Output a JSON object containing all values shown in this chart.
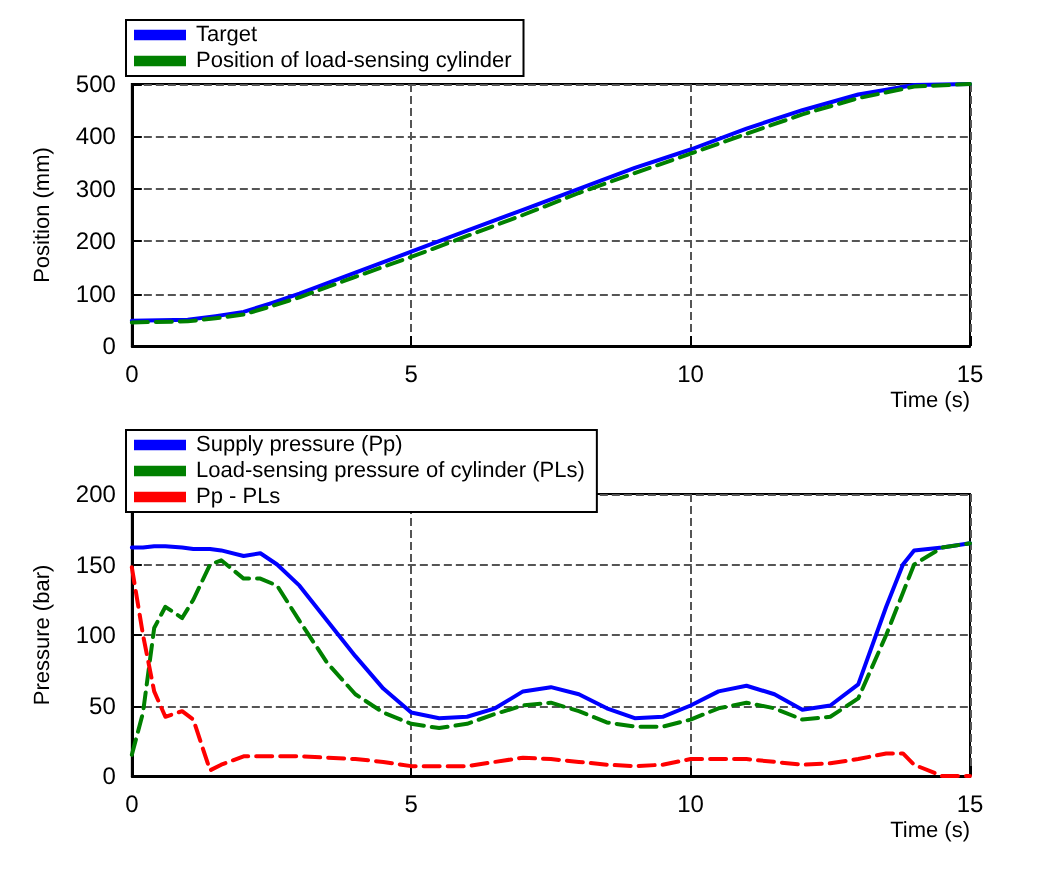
{
  "chart_data": [
    {
      "type": "line",
      "xlabel": "Time (s)",
      "ylabel": "Position (mm)",
      "xlim": [
        0,
        15
      ],
      "xticks": [
        0,
        5,
        10,
        15
      ],
      "ylim": [
        0,
        500
      ],
      "yticks": [
        0,
        100,
        200,
        300,
        400,
        500
      ],
      "grid": true,
      "legend": "top left",
      "x": [
        0,
        1,
        1.5,
        2,
        2.5,
        3,
        4,
        5,
        6,
        7,
        8,
        9,
        10,
        11,
        12,
        13,
        14,
        15
      ],
      "series": [
        {
          "name": "Target",
          "color": "#0000ff",
          "line_style": "solid",
          "values": [
            48,
            50,
            57,
            65,
            82,
            100,
            140,
            180,
            220,
            260,
            300,
            340,
            375,
            415,
            450,
            480,
            498,
            500
          ]
        },
        {
          "name": "Position of load-sensing cylinder",
          "color": "#008000",
          "line_style": "dashed",
          "values": [
            45,
            47,
            53,
            60,
            76,
            93,
            132,
            170,
            210,
            250,
            292,
            330,
            367,
            405,
            442,
            473,
            495,
            500
          ]
        }
      ]
    },
    {
      "type": "line",
      "xlabel": "Time (s)",
      "ylabel": "Pressure (bar)",
      "xlim": [
        0,
        15
      ],
      "xticks": [
        0,
        5,
        10,
        15
      ],
      "ylim": [
        0,
        200
      ],
      "yticks": [
        0,
        50,
        100,
        150,
        200
      ],
      "grid": true,
      "legend": "top left",
      "x": [
        0,
        0.2,
        0.4,
        0.6,
        0.9,
        1.1,
        1.4,
        1.6,
        2,
        2.3,
        2.6,
        3,
        3.5,
        4,
        4.5,
        5,
        5.5,
        6,
        6.5,
        7,
        7.5,
        8,
        8.5,
        9,
        9.5,
        10,
        10.5,
        11,
        11.5,
        12,
        12.5,
        13,
        13.5,
        13.8,
        14,
        14.5,
        15
      ],
      "series": [
        {
          "name": "Supply pressure (Pp)",
          "color": "#0000ff",
          "line_style": "solid",
          "values": [
            162,
            162,
            163,
            163,
            162,
            161,
            161,
            160,
            156,
            158,
            150,
            135,
            110,
            85,
            62,
            45,
            41,
            42,
            48,
            60,
            63,
            58,
            48,
            41,
            42,
            50,
            60,
            64,
            58,
            47,
            50,
            65,
            120,
            150,
            160,
            162,
            165
          ]
        },
        {
          "name": "Load-sensing pressure of cylinder (PLs)",
          "color": "#008000",
          "line_style": "dashed",
          "values": [
            15,
            45,
            105,
            120,
            112,
            125,
            150,
            153,
            140,
            140,
            135,
            110,
            80,
            58,
            45,
            37,
            34,
            37,
            44,
            50,
            52,
            46,
            38,
            35,
            35,
            40,
            48,
            52,
            48,
            40,
            42,
            55,
            100,
            130,
            150,
            162,
            165
          ]
        },
        {
          "name": "Pp - PLs",
          "color": "#ff0000",
          "line_style": "dashed",
          "values": [
            148,
            100,
            60,
            42,
            46,
            40,
            4,
            8,
            14,
            14,
            14,
            14,
            13,
            12,
            10,
            7,
            7,
            7,
            10,
            13,
            12,
            10,
            8,
            7,
            8,
            12,
            12,
            12,
            10,
            8,
            9,
            12,
            16,
            16,
            8,
            0,
            0
          ]
        }
      ]
    }
  ]
}
